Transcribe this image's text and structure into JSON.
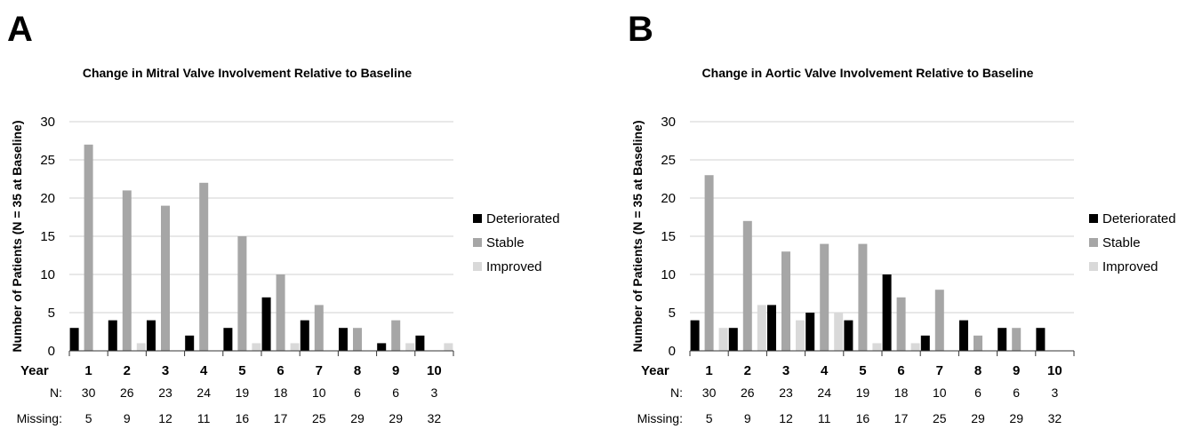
{
  "chart_data": [
    {
      "type": "bar",
      "panel": "A",
      "title": "Change in Mitral Valve Involvement Relative to Baseline",
      "ylabel": "Number of Patients  (N = 35 at Baseline)",
      "xlabel": "Year",
      "ylim": [
        0,
        30
      ],
      "yticks": [
        "0",
        "5",
        "10",
        "15",
        "20",
        "25",
        "30"
      ],
      "grid": true,
      "legend_position": "right",
      "categories": [
        "1",
        "2",
        "3",
        "4",
        "5",
        "6",
        "7",
        "8",
        "9",
        "10"
      ],
      "series": [
        {
          "name": "Deteriorated",
          "color": "#000000",
          "values": [
            3,
            4,
            4,
            2,
            3,
            7,
            4,
            3,
            1,
            2
          ]
        },
        {
          "name": "Stable",
          "color": "#a6a6a6",
          "values": [
            27,
            21,
            19,
            22,
            15,
            10,
            6,
            3,
            4,
            0
          ]
        },
        {
          "name": "Improved",
          "color": "#d9d9d9",
          "values": [
            0,
            1,
            0,
            0,
            1,
            1,
            0,
            0,
            1,
            1
          ]
        }
      ],
      "table_rows": [
        {
          "label": "N:",
          "values": [
            "30",
            "26",
            "23",
            "24",
            "19",
            "18",
            "10",
            "6",
            "6",
            "3"
          ]
        },
        {
          "label": "Missing:",
          "values": [
            "5",
            "9",
            "12",
            "11",
            "16",
            "17",
            "25",
            "29",
            "29",
            "32"
          ]
        }
      ]
    },
    {
      "type": "bar",
      "panel": "B",
      "title": "Change in Aortic Valve Involvement Relative to Baseline",
      "ylabel": "Number of Patients  (N = 35 at Baseline)",
      "xlabel": "Year",
      "ylim": [
        0,
        30
      ],
      "yticks": [
        "0",
        "5",
        "10",
        "15",
        "20",
        "25",
        "30"
      ],
      "grid": true,
      "legend_position": "right",
      "categories": [
        "1",
        "2",
        "3",
        "4",
        "5",
        "6",
        "7",
        "8",
        "9",
        "10"
      ],
      "series": [
        {
          "name": "Deteriorated",
          "color": "#000000",
          "values": [
            4,
            3,
            6,
            5,
            4,
            10,
            2,
            4,
            3,
            3
          ]
        },
        {
          "name": "Stable",
          "color": "#a6a6a6",
          "values": [
            23,
            17,
            13,
            14,
            14,
            7,
            8,
            2,
            3,
            0
          ]
        },
        {
          "name": "Improved",
          "color": "#d9d9d9",
          "values": [
            3,
            6,
            4,
            5,
            1,
            1,
            0,
            0,
            0,
            0
          ]
        }
      ],
      "table_rows": [
        {
          "label": "N:",
          "values": [
            "30",
            "26",
            "23",
            "24",
            "19",
            "18",
            "10",
            "6",
            "6",
            "3"
          ]
        },
        {
          "label": "Missing:",
          "values": [
            "5",
            "9",
            "12",
            "11",
            "16",
            "17",
            "25",
            "29",
            "29",
            "32"
          ]
        }
      ]
    }
  ]
}
